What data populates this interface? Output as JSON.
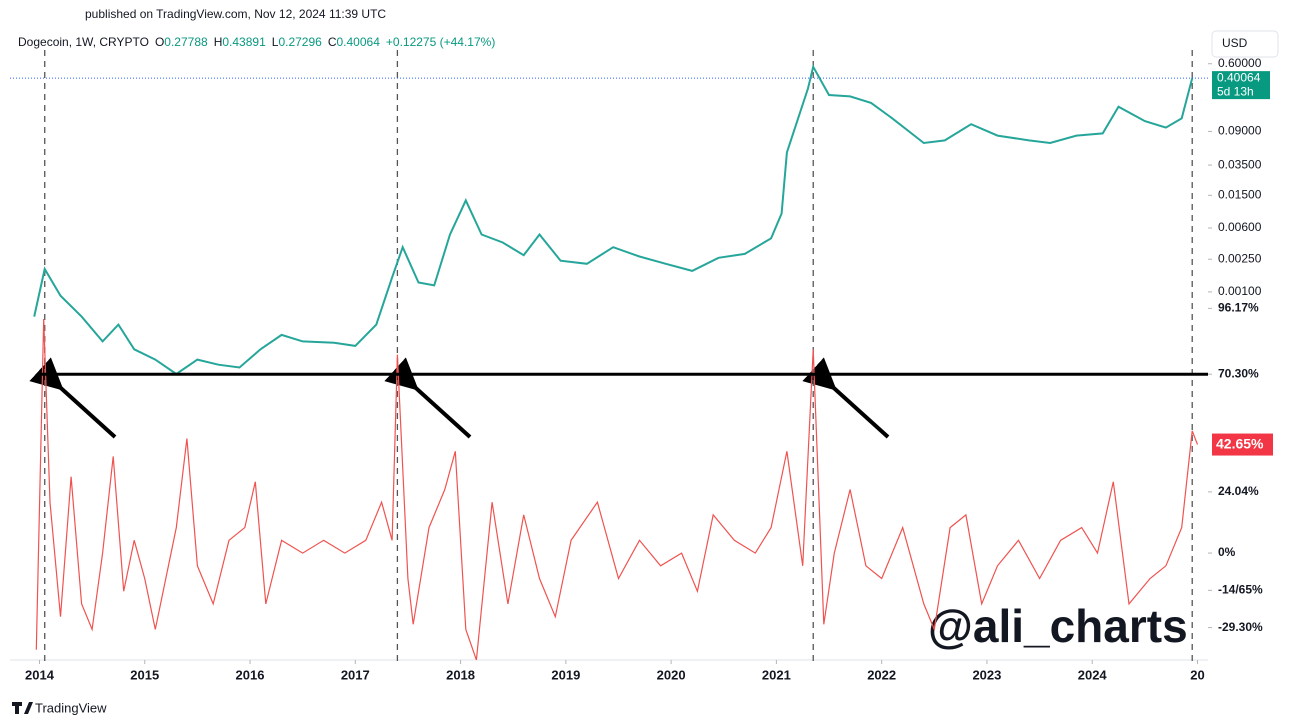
{
  "page": {
    "published": "published on TradingView.com, Nov 12, 2024 11:39 UTC",
    "currency": "USD",
    "watermark": "@ali_charts",
    "brand": "TradingView"
  },
  "chart_data": [
    {
      "type": "line",
      "title": "Dogecoin, 1W, CRYPTO",
      "ohlc": [
        {
          "label": "O",
          "value": "0.27788"
        },
        {
          "label": "H",
          "value": "0.43891"
        },
        {
          "label": "L",
          "value": "0.27296"
        },
        {
          "label": "C",
          "value": "0.40064"
        }
      ],
      "change": "+0.12275 (+44.17%)",
      "log_scale": true,
      "color": "#26a69a",
      "current": 0.40064,
      "countdown": "5d 13h",
      "xlim": [
        2013.72,
        2025.1
      ],
      "xticks": [
        2014,
        2015,
        2016,
        2017,
        2018,
        2019,
        2020,
        2021,
        2022,
        2023,
        2024,
        {
          "value": 2025,
          "label": "20"
        }
      ],
      "ylim": [
        8e-05,
        1.2
      ],
      "yticks": [
        {
          "value": 0.6,
          "label": "0.60000"
        },
        {
          "value": 0.09,
          "label": "0.09000"
        },
        {
          "value": 0.035,
          "label": "0.03500"
        },
        {
          "value": 0.015,
          "label": "0.01500"
        },
        {
          "value": 0.006,
          "label": "0.00600"
        },
        {
          "value": 0.0025,
          "label": "0.00250"
        },
        {
          "value": 0.001,
          "label": "0.00100"
        }
      ],
      "vlines": [
        2014.05,
        2017.4,
        2021.35,
        2024.95
      ],
      "x": [
        2013.95,
        2014.05,
        2014.2,
        2014.4,
        2014.6,
        2014.75,
        2014.9,
        2015.1,
        2015.3,
        2015.5,
        2015.7,
        2015.9,
        2016.1,
        2016.3,
        2016.5,
        2016.8,
        2017.0,
        2017.2,
        2017.35,
        2017.45,
        2017.6,
        2017.75,
        2017.9,
        2018.05,
        2018.2,
        2018.4,
        2018.6,
        2018.75,
        2018.95,
        2019.2,
        2019.45,
        2019.7,
        2019.95,
        2020.2,
        2020.45,
        2020.7,
        2020.95,
        2021.05,
        2021.1,
        2021.3,
        2021.35,
        2021.5,
        2021.7,
        2021.9,
        2022.1,
        2022.4,
        2022.6,
        2022.85,
        2023.1,
        2023.4,
        2023.6,
        2023.85,
        2024.1,
        2024.25,
        2024.5,
        2024.7,
        2024.85,
        2024.95
      ],
      "values": [
        0.0005,
        0.0019,
        0.0009,
        0.0005,
        0.00025,
        0.0004,
        0.0002,
        0.00015,
        0.0001,
        0.00015,
        0.00013,
        0.00012,
        0.0002,
        0.0003,
        0.00025,
        0.00024,
        0.00022,
        0.0004,
        0.0015,
        0.0035,
        0.0013,
        0.0012,
        0.005,
        0.013,
        0.005,
        0.004,
        0.0028,
        0.005,
        0.0024,
        0.0022,
        0.0035,
        0.0027,
        0.0022,
        0.0018,
        0.0026,
        0.0029,
        0.0045,
        0.009,
        0.05,
        0.3,
        0.55,
        0.25,
        0.24,
        0.2,
        0.13,
        0.065,
        0.07,
        0.11,
        0.08,
        0.07,
        0.065,
        0.08,
        0.085,
        0.18,
        0.12,
        0.1,
        0.13,
        0.4
      ]
    },
    {
      "type": "line",
      "color": "#ef5350",
      "threshold": 70.3,
      "ylim": [
        -44,
        97.5
      ],
      "yticks": [
        {
          "value": 96.17,
          "label": "96.17%"
        },
        {
          "value": 70.3,
          "label": "70.30%"
        },
        {
          "value": 24.04,
          "label": "24.04%"
        },
        {
          "value": 0,
          "label": "0%"
        },
        {
          "value": -14.65,
          "label": "-14/65%"
        },
        {
          "value": -29.3,
          "label": "-29.30%"
        }
      ],
      "last_label": "42.65%",
      "x": [
        2013.97,
        2014.04,
        2014.1,
        2014.2,
        2014.3,
        2014.4,
        2014.5,
        2014.6,
        2014.7,
        2014.8,
        2014.9,
        2015.0,
        2015.1,
        2015.3,
        2015.4,
        2015.5,
        2015.65,
        2015.8,
        2015.95,
        2016.05,
        2016.15,
        2016.3,
        2016.5,
        2016.7,
        2016.9,
        2017.1,
        2017.25,
        2017.35,
        2017.4,
        2017.5,
        2017.55,
        2017.7,
        2017.85,
        2017.95,
        2018.05,
        2018.15,
        2018.3,
        2018.45,
        2018.6,
        2018.75,
        2018.9,
        2019.05,
        2019.3,
        2019.5,
        2019.7,
        2019.9,
        2020.1,
        2020.25,
        2020.4,
        2020.6,
        2020.8,
        2020.95,
        2021.1,
        2021.25,
        2021.35,
        2021.45,
        2021.55,
        2021.7,
        2021.85,
        2022.0,
        2022.2,
        2022.4,
        2022.5,
        2022.65,
        2022.8,
        2022.95,
        2023.1,
        2023.3,
        2023.5,
        2023.7,
        2023.9,
        2024.05,
        2024.2,
        2024.35,
        2024.55,
        2024.7,
        2024.85,
        2024.95,
        2025.0
      ],
      "values": [
        -38,
        92,
        20,
        -25,
        30,
        -20,
        -30,
        0,
        38,
        -15,
        5,
        -10,
        -30,
        10,
        45,
        -5,
        -20,
        5,
        10,
        28,
        -20,
        5,
        0,
        5,
        0,
        5,
        20,
        5,
        78,
        -10,
        -28,
        10,
        25,
        40,
        -30,
        -42,
        20,
        -20,
        15,
        -10,
        -25,
        5,
        20,
        -10,
        5,
        -5,
        0,
        -15,
        15,
        5,
        0,
        10,
        40,
        -5,
        80,
        -28,
        0,
        25,
        -5,
        -10,
        10,
        -20,
        -30,
        10,
        15,
        -20,
        -5,
        5,
        -10,
        5,
        10,
        0,
        28,
        -20,
        -10,
        -5,
        10,
        48,
        42.65
      ]
    }
  ]
}
